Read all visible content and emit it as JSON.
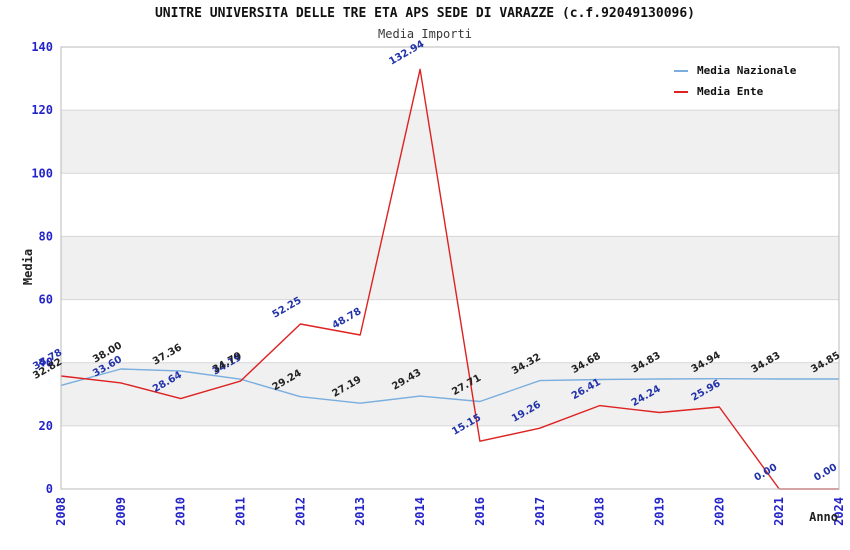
{
  "header": {
    "title": "UNITRE UNIVERSITA DELLE TRE ETA APS SEDE DI VARAZZE (c.f.92049130096)",
    "subtitle": "Media Importi"
  },
  "legend": {
    "items": [
      {
        "label": "Media Nazionale"
      },
      {
        "label": "Media Ente"
      }
    ]
  },
  "axes": {
    "y_title": "Media",
    "x_title": "Anno",
    "y_ticks": [
      "0",
      "20",
      "40",
      "60",
      "80",
      "100",
      "120",
      "140"
    ],
    "tick_color": "#2424c8"
  },
  "chart_data": {
    "type": "line",
    "title": "UNITRE UNIVERSITA DELLE TRE ETA APS SEDE DI VARAZZE (c.f.92049130096)",
    "subtitle": "Media Importi",
    "xlabel": "Anno",
    "ylabel": "Media",
    "ylim": [
      0,
      140
    ],
    "ytick_step": 20,
    "grid": "horizontal-bands-every-20",
    "legend_position": "top-right-inside",
    "categories": [
      "2008",
      "2009",
      "2010",
      "2011",
      "2012",
      "2013",
      "2014",
      "2016",
      "2017",
      "2018",
      "2019",
      "2020",
      "2021",
      "2024"
    ],
    "series": [
      {
        "name": "Media Nazionale",
        "color": "#79aede",
        "label_color": "#222222",
        "values": [
          32.82,
          38.0,
          37.36,
          34.79,
          29.24,
          27.19,
          29.43,
          27.71,
          34.32,
          34.68,
          34.83,
          34.94,
          34.83,
          34.85
        ],
        "labels": [
          "32.82",
          "38.00",
          "37.36",
          "34.79",
          "29.24",
          "27.19",
          "29.43",
          "27.71",
          "34.32",
          "34.68",
          "34.83",
          "34.94",
          "34.83",
          "34.85"
        ]
      },
      {
        "name": "Media Ente",
        "color": "#dd2222",
        "label_color": "#2233aa",
        "values": [
          35.78,
          33.6,
          28.64,
          34.19,
          52.25,
          48.78,
          132.94,
          15.15,
          19.26,
          26.41,
          24.24,
          25.96,
          0.0,
          0.0
        ],
        "labels": [
          "35.78",
          "33.60",
          "28.64",
          "34.19",
          "52.25",
          "48.78",
          "132.94",
          "15.15",
          "19.26",
          "26.41",
          "24.24",
          "25.96",
          "0.00",
          "0.00"
        ]
      }
    ],
    "band_color": "#f0f0f0",
    "gridline_color": "#d7d7d7",
    "border_color": "#b9b9b9"
  }
}
